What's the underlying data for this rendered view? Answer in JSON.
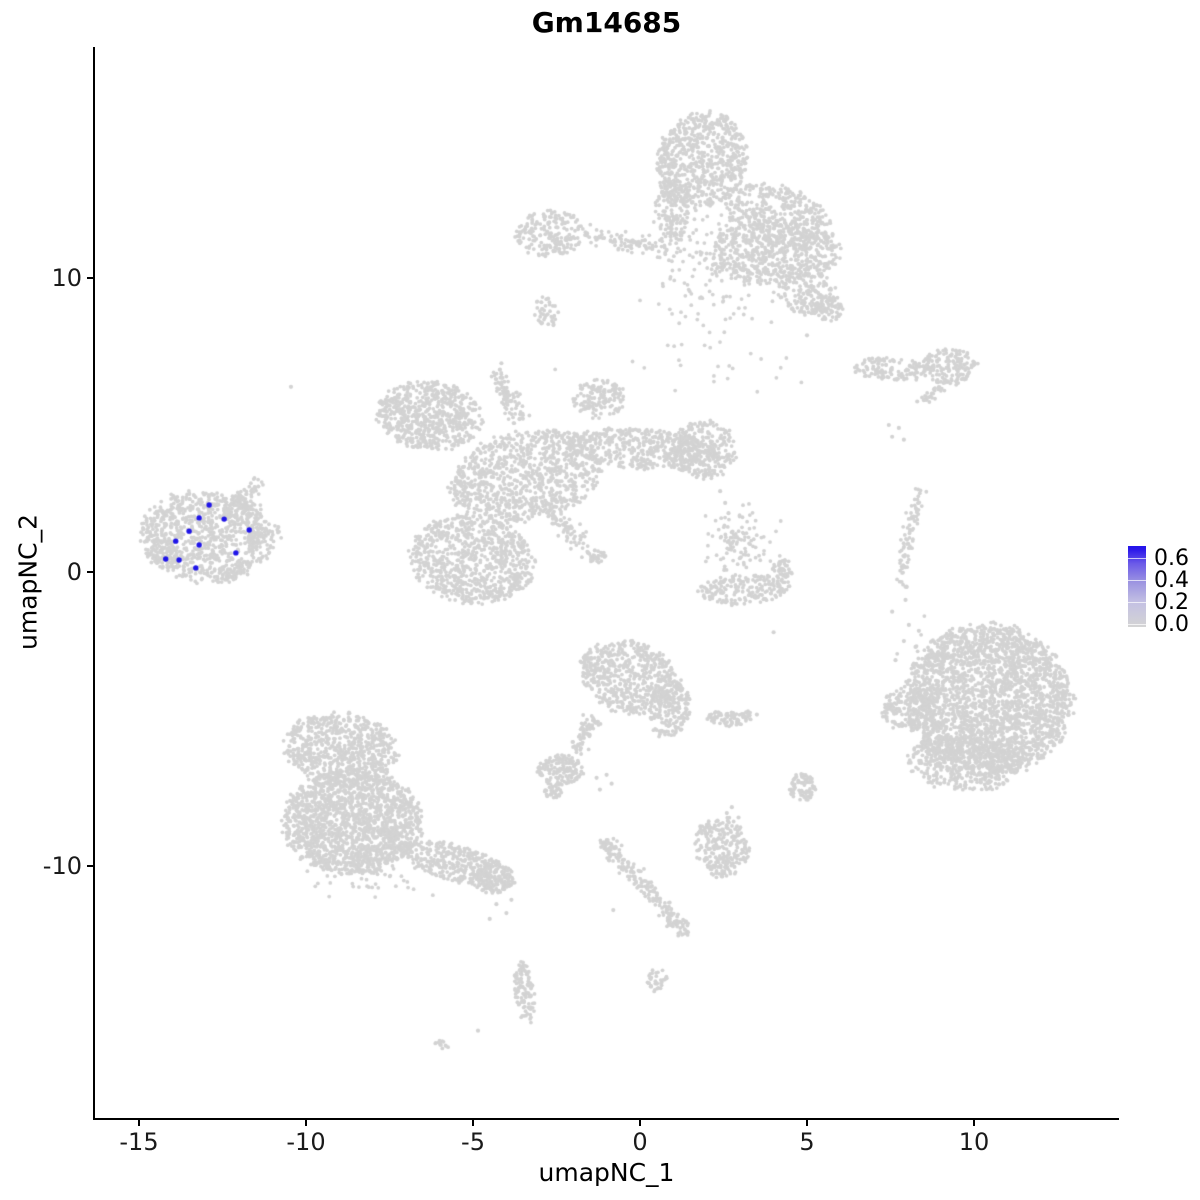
{
  "title": "Gm14685",
  "axes": {
    "x_label": "umapNC_1",
    "y_label": "umapNC_2",
    "x_ticks": [
      -15,
      -10,
      -5,
      0,
      5,
      10
    ],
    "y_ticks": [
      -10,
      0,
      10
    ]
  },
  "legend": {
    "labels": [
      "0.6",
      "0.4",
      "0.2",
      "0.0"
    ],
    "values": [
      0.6,
      0.4,
      0.2,
      0.0
    ],
    "low_color": "#D3D3D3",
    "high_color": "#1414EB"
  },
  "colors": {
    "background": "#FFFFFF",
    "points_gray": "#D3D3D3",
    "points_blue": "#1F14E8",
    "axis": "#000000",
    "text": "#000000"
  },
  "chart_data": {
    "type": "scatter",
    "title": "Gm14685",
    "xlabel": "umapNC_1",
    "ylabel": "umapNC_2",
    "xlim": [
      -16.3,
      14.3
    ],
    "ylim": [
      -18.6,
      17.9
    ],
    "grid": false,
    "legend_position": "right",
    "note": "UMAP feature plot: gray background cells, blue cells express Gm14685 (scale 0.0-0.6); expressing cells all lie in the far-left cluster near (-13, 1).",
    "expressing_cells": [
      {
        "x": -12.9,
        "y": 2.28,
        "value": 0.62
      },
      {
        "x": -13.2,
        "y": 1.84,
        "value": 0.58
      },
      {
        "x": -12.45,
        "y": 1.8,
        "value": 0.6
      },
      {
        "x": -13.5,
        "y": 1.39,
        "value": 0.55
      },
      {
        "x": -11.7,
        "y": 1.43,
        "value": 0.6
      },
      {
        "x": -13.9,
        "y": 1.05,
        "value": 0.57
      },
      {
        "x": -13.2,
        "y": 0.92,
        "value": 0.63
      },
      {
        "x": -12.1,
        "y": 0.65,
        "value": 0.6
      },
      {
        "x": -14.2,
        "y": 0.44,
        "value": 0.56
      },
      {
        "x": -13.8,
        "y": 0.41,
        "value": 0.61
      },
      {
        "x": -13.3,
        "y": 0.14,
        "value": 0.59
      }
    ],
    "background_clusters": [
      {
        "t": "e",
        "cx": -13.0,
        "cy": 1.2,
        "rx": 1.95,
        "ry": 1.55,
        "rot": -5,
        "n": 850
      },
      {
        "t": "e",
        "cx": -14.3,
        "cy": 0.6,
        "rx": 0.5,
        "ry": 0.45,
        "rot": 0,
        "n": 60
      },
      {
        "t": "e",
        "cx": -11.9,
        "cy": 2.0,
        "rx": 0.6,
        "ry": 0.5,
        "rot": 0,
        "n": 70
      },
      {
        "t": "l",
        "x1": -12.2,
        "y1": 2.45,
        "x2": -11.35,
        "y2": 3.1,
        "w": 0.25,
        "n": 45
      },
      {
        "t": "l",
        "x1": -11.7,
        "y1": 1.15,
        "x2": -10.75,
        "y2": 1.35,
        "w": 0.25,
        "n": 45
      },
      {
        "t": "e",
        "cx": -12.3,
        "cy": -0.1,
        "rx": 0.3,
        "ry": 0.25,
        "rot": 0,
        "n": 25
      },
      {
        "t": "e",
        "cx": -11.9,
        "cy": 0.15,
        "rx": 0.27,
        "ry": 0.22,
        "rot": 0,
        "n": 20
      },
      {
        "t": "e",
        "cx": 1.85,
        "cy": 14.0,
        "rx": 1.35,
        "ry": 1.65,
        "rot": -12,
        "n": 700
      },
      {
        "t": "e",
        "cx": 0.95,
        "cy": 12.3,
        "rx": 0.5,
        "ry": 1.1,
        "rot": 5,
        "n": 150
      },
      {
        "t": "e",
        "cx": 4.1,
        "cy": 12.1,
        "rx": 1.75,
        "ry": 1.0,
        "rot": -18,
        "n": 400
      },
      {
        "t": "e",
        "cx": 4.05,
        "cy": 10.9,
        "rx": 1.95,
        "ry": 1.1,
        "rot": 0,
        "n": 520
      },
      {
        "t": "e",
        "cx": 4.9,
        "cy": 9.6,
        "rx": 1.0,
        "ry": 0.8,
        "rot": -30,
        "n": 170
      },
      {
        "t": "e",
        "cx": 5.6,
        "cy": 8.95,
        "rx": 0.5,
        "ry": 0.45,
        "rot": 0,
        "n": 70
      },
      {
        "t": "g",
        "cx": 2.3,
        "cy": 10.6,
        "sx": 0.9,
        "sy": 0.9,
        "n": 160
      },
      {
        "t": "l",
        "x1": -1.7,
        "y1": 11.4,
        "x2": 0.9,
        "y2": 11.05,
        "w": 0.3,
        "n": 100
      },
      {
        "t": "e",
        "cx": -2.7,
        "cy": 11.5,
        "rx": 1.05,
        "ry": 0.8,
        "rot": 8,
        "n": 200
      },
      {
        "t": "e",
        "cx": -2.8,
        "cy": 8.85,
        "rx": 0.36,
        "ry": 0.5,
        "rot": 20,
        "n": 40
      },
      {
        "t": "g",
        "cx": 2.3,
        "cy": 7.6,
        "sx": 1.3,
        "sy": 1.1,
        "n": 40
      },
      {
        "t": "e",
        "cx": 7.5,
        "cy": 6.9,
        "rx": 1.25,
        "ry": 0.38,
        "rot": -5,
        "n": 130
      },
      {
        "t": "e",
        "cx": 9.25,
        "cy": 7.0,
        "rx": 0.85,
        "ry": 0.62,
        "rot": 0,
        "n": 170
      },
      {
        "t": "l",
        "x1": 8.45,
        "y1": 5.9,
        "x2": 9.1,
        "y2": 6.3,
        "w": 0.2,
        "n": 30
      },
      {
        "t": "l",
        "x1": 8.4,
        "y1": 2.8,
        "x2": 8.0,
        "y2": 1.1,
        "w": 0.22,
        "n": 45
      },
      {
        "t": "l",
        "x1": 8.0,
        "y1": 1.1,
        "x2": 7.8,
        "y2": -0.5,
        "w": 0.2,
        "n": 40
      },
      {
        "t": "e",
        "cx": 10.45,
        "cy": -4.35,
        "rx": 2.45,
        "ry": 2.55,
        "rot": 8,
        "n": 2600
      },
      {
        "t": "e",
        "cx": 9.7,
        "cy": -6.5,
        "rx": 1.7,
        "ry": 0.95,
        "rot": -5,
        "n": 420
      },
      {
        "t": "e",
        "cx": 8.05,
        "cy": -4.65,
        "rx": 0.8,
        "ry": 0.75,
        "rot": 0,
        "n": 200
      },
      {
        "t": "g",
        "cx": 8.7,
        "cy": -2.7,
        "sx": 0.45,
        "sy": 0.45,
        "n": 35
      },
      {
        "t": "e",
        "cx": -6.3,
        "cy": 5.3,
        "rx": 1.6,
        "ry": 1.15,
        "rot": -10,
        "n": 650
      },
      {
        "t": "l",
        "x1": -4.35,
        "y1": 6.85,
        "x2": -3.6,
        "y2": 5.1,
        "w": 0.3,
        "n": 90
      },
      {
        "t": "e",
        "cx": -1.2,
        "cy": 5.9,
        "rx": 0.78,
        "ry": 0.68,
        "rot": 0,
        "n": 140
      },
      {
        "t": "e",
        "cx": -3.4,
        "cy": 3.25,
        "rx": 2.3,
        "ry": 1.5,
        "rot": 14,
        "n": 950
      },
      {
        "t": "e",
        "cx": 0.0,
        "cy": 4.2,
        "rx": 2.25,
        "ry": 0.68,
        "rot": -4,
        "n": 480
      },
      {
        "t": "e",
        "cx": 1.9,
        "cy": 4.15,
        "rx": 0.98,
        "ry": 0.98,
        "rot": 0,
        "n": 280
      },
      {
        "t": "e",
        "cx": -5.0,
        "cy": 0.45,
        "rx": 1.85,
        "ry": 1.5,
        "rot": -10,
        "n": 850
      },
      {
        "t": "l",
        "x1": -2.7,
        "y1": 2.0,
        "x2": -1.15,
        "y2": 0.35,
        "w": 0.3,
        "n": 100
      },
      {
        "t": "g",
        "cx": 2.95,
        "cy": 0.95,
        "sx": 0.5,
        "sy": 0.55,
        "n": 110
      },
      {
        "t": "e",
        "cx": 3.1,
        "cy": -0.6,
        "rx": 1.4,
        "ry": 0.5,
        "rot": 4,
        "n": 190
      },
      {
        "t": "e",
        "cx": 4.3,
        "cy": 0.1,
        "rx": 0.33,
        "ry": 0.3,
        "rot": 0,
        "n": 40
      },
      {
        "t": "e",
        "cx": -0.3,
        "cy": -3.6,
        "rx": 1.55,
        "ry": 1.2,
        "rot": -25,
        "n": 600
      },
      {
        "t": "e",
        "cx": 0.9,
        "cy": -4.7,
        "rx": 0.6,
        "ry": 0.95,
        "rot": -12,
        "n": 170
      },
      {
        "t": "l",
        "x1": -1.35,
        "y1": -4.9,
        "x2": -1.95,
        "y2": -6.15,
        "w": 0.27,
        "n": 70
      },
      {
        "t": "e",
        "cx": -2.4,
        "cy": -6.75,
        "rx": 0.68,
        "ry": 0.52,
        "rot": 0,
        "n": 160
      },
      {
        "t": "e",
        "cx": -2.6,
        "cy": -7.5,
        "rx": 0.25,
        "ry": 0.22,
        "rot": 0,
        "n": 30
      },
      {
        "t": "e",
        "cx": 2.3,
        "cy": -4.95,
        "rx": 0.27,
        "ry": 0.22,
        "rot": 0,
        "n": 25
      },
      {
        "t": "e",
        "cx": 2.78,
        "cy": -5.02,
        "rx": 0.33,
        "ry": 0.26,
        "rot": 0,
        "n": 35
      },
      {
        "t": "e",
        "cx": 3.2,
        "cy": -4.9,
        "rx": 0.24,
        "ry": 0.2,
        "rot": 0,
        "n": 20
      },
      {
        "t": "e",
        "cx": 4.85,
        "cy": -7.3,
        "rx": 0.42,
        "ry": 0.47,
        "rot": 0,
        "n": 80
      },
      {
        "t": "e",
        "cx": -8.95,
        "cy": -6.0,
        "rx": 1.75,
        "ry": 1.2,
        "rot": -8,
        "n": 700
      },
      {
        "t": "e",
        "cx": -8.6,
        "cy": -8.5,
        "rx": 2.05,
        "ry": 1.75,
        "rot": 0,
        "n": 1700
      },
      {
        "t": "e",
        "cx": -5.5,
        "cy": -9.9,
        "rx": 1.8,
        "ry": 0.62,
        "rot": -18,
        "n": 350
      },
      {
        "t": "e",
        "cx": -4.35,
        "cy": -10.4,
        "rx": 0.6,
        "ry": 0.55,
        "rot": 0,
        "n": 130
      },
      {
        "t": "g",
        "cx": -8.3,
        "cy": -10.45,
        "sx": 1.1,
        "sy": 0.3,
        "n": 40
      },
      {
        "t": "e",
        "cx": -3.45,
        "cy": -14.3,
        "rx": 0.3,
        "ry": 1.05,
        "rot": 5,
        "n": 110
      },
      {
        "t": "e",
        "cx": -5.95,
        "cy": -16.05,
        "rx": 0.25,
        "ry": 0.13,
        "rot": -35,
        "n": 14
      },
      {
        "t": "l",
        "x1": -0.95,
        "y1": -9.3,
        "x2": 1.1,
        "y2": -11.9,
        "w": 0.28,
        "n": 160
      },
      {
        "t": "e",
        "cx": -0.95,
        "cy": -9.25,
        "rx": 0.3,
        "ry": 0.3,
        "rot": 0,
        "n": 30
      },
      {
        "t": "e",
        "cx": 1.2,
        "cy": -12.1,
        "rx": 0.4,
        "ry": 0.3,
        "rot": -20,
        "n": 40
      },
      {
        "t": "e",
        "cx": 0.5,
        "cy": -13.9,
        "rx": 0.3,
        "ry": 0.42,
        "rot": -15,
        "n": 35
      },
      {
        "t": "e",
        "cx": 2.45,
        "cy": -9.35,
        "rx": 0.8,
        "ry": 1.05,
        "rot": 12,
        "n": 260
      }
    ],
    "single_dots": [
      [
        -2.75,
        9.3
      ],
      [
        5.0,
        8.05
      ],
      [
        8.3,
        5.8
      ],
      [
        7.45,
        5.0
      ],
      [
        7.75,
        4.9
      ],
      [
        7.55,
        4.6
      ],
      [
        7.9,
        4.5
      ],
      [
        7.55,
        -1.35
      ],
      [
        7.95,
        -0.95
      ],
      [
        8.05,
        -1.8
      ],
      [
        7.9,
        -2.35
      ],
      [
        8.25,
        -2.55
      ],
      [
        7.65,
        -3.0
      ],
      [
        8.45,
        -2.95
      ],
      [
        8.15,
        -3.45
      ],
      [
        8.6,
        -3.35
      ],
      [
        8.35,
        -2.0
      ],
      [
        -4.15,
        7.1
      ],
      [
        -10.45,
        6.3
      ],
      [
        2.4,
        2.75
      ],
      [
        2.55,
        2.35
      ],
      [
        2.65,
        2.0
      ],
      [
        -1.3,
        -7.0
      ],
      [
        -1.0,
        -6.9
      ],
      [
        -0.85,
        -7.2
      ],
      [
        -1.2,
        -7.4
      ],
      [
        2.02,
        -5.0
      ],
      [
        3.5,
        -4.85
      ],
      [
        4.0,
        -2.05
      ],
      [
        -4.3,
        -11.3
      ],
      [
        -4.0,
        -11.6
      ],
      [
        -4.5,
        -11.8
      ],
      [
        -3.85,
        -11.15
      ],
      [
        -4.85,
        -15.6
      ],
      [
        -0.8,
        -11.5
      ],
      [
        2.75,
        -8.0
      ],
      [
        2.95,
        -8.35
      ],
      [
        2.6,
        -8.2
      ]
    ]
  }
}
